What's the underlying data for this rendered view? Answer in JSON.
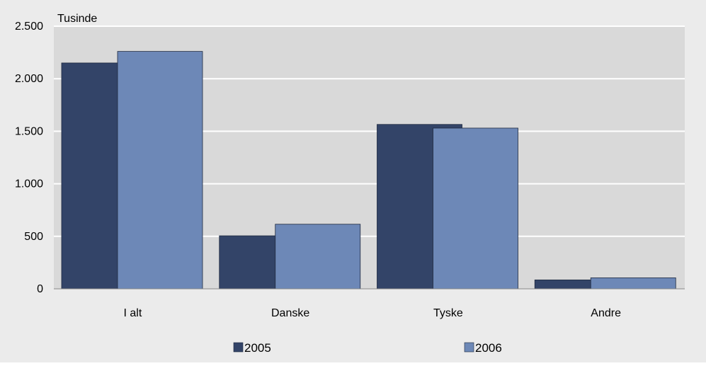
{
  "chart_data": {
    "type": "bar",
    "title": "",
    "ylabel": "Tusinde",
    "xlabel": "",
    "categories": [
      "I alt",
      "Danske",
      "Tyske",
      "Andre"
    ],
    "series": [
      {
        "name": "2005",
        "values": [
          2150,
          505,
          1565,
          85
        ],
        "color": "#334468"
      },
      {
        "name": "2006",
        "values": [
          2260,
          615,
          1530,
          105
        ],
        "color": "#6d88b7"
      }
    ],
    "ylim": [
      0,
      2500
    ],
    "yticks": [
      0,
      500,
      1000,
      1500,
      2000,
      2500
    ],
    "ytick_labels": [
      "0",
      "500",
      "1.000",
      "1.500",
      "2.000",
      "2.500"
    ],
    "grid": true,
    "legend_position": "bottom",
    "plot_background": "#d9d9d9"
  }
}
